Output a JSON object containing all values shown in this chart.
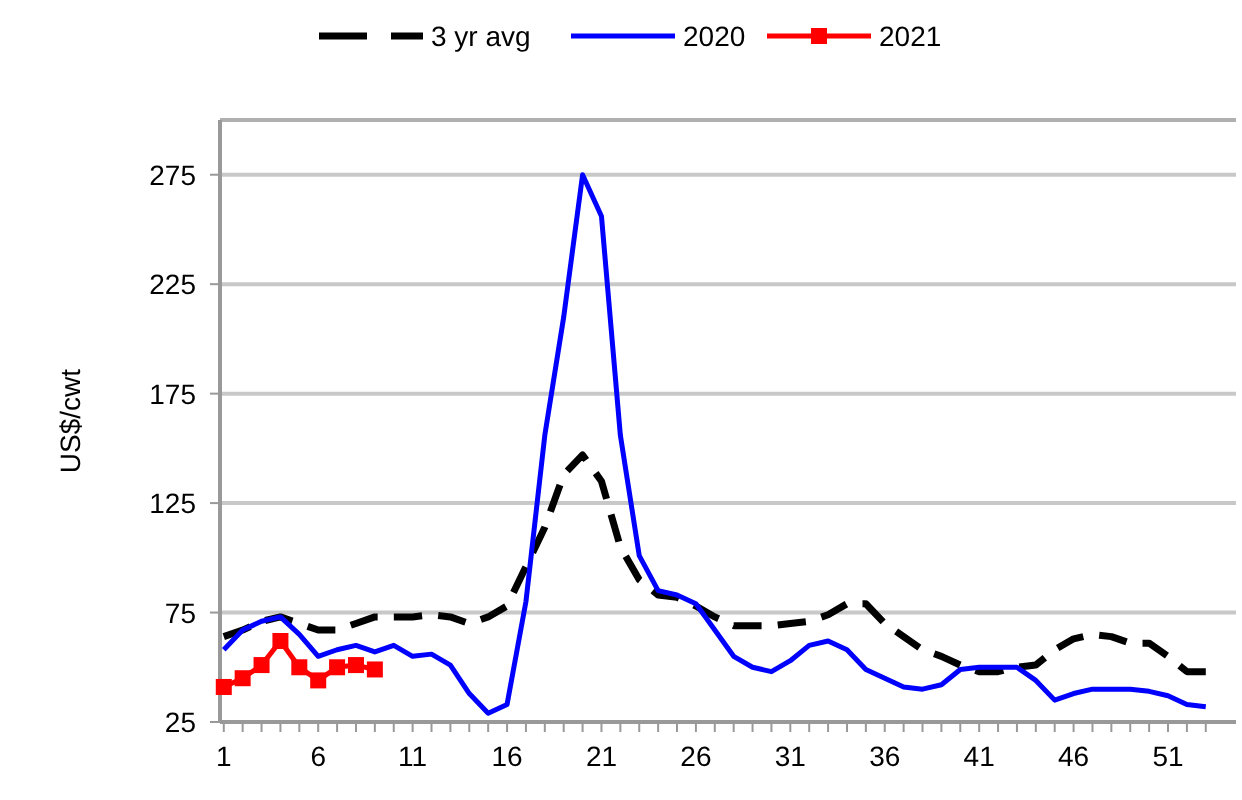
{
  "chart_data": {
    "type": "line",
    "ylabel": "US$/cwt",
    "x": [
      1,
      2,
      3,
      4,
      5,
      6,
      7,
      8,
      9,
      10,
      11,
      12,
      13,
      14,
      15,
      16,
      17,
      18,
      19,
      20,
      21,
      22,
      23,
      24,
      25,
      26,
      27,
      28,
      29,
      30,
      31,
      32,
      33,
      34,
      35,
      36,
      37,
      38,
      39,
      40,
      41,
      42,
      43,
      44,
      45,
      46,
      47,
      48,
      49,
      50,
      51,
      52,
      53
    ],
    "xlim": [
      0.8,
      54.6
    ],
    "xticks": [
      1,
      6,
      11,
      16,
      21,
      26,
      31,
      36,
      41,
      46,
      51
    ],
    "ylim": [
      25,
      300
    ],
    "yticks": [
      25,
      75,
      125,
      175,
      225,
      275
    ],
    "grid": "y",
    "legend": "top",
    "series": [
      {
        "name": "3 yr avg",
        "color": "#000000",
        "line_style": "dashed",
        "marker": "none",
        "values": [
          64,
          67,
          71,
          73,
          70,
          67,
          67,
          70,
          73,
          73,
          73,
          74,
          73,
          70,
          73,
          78,
          96,
          114,
          138,
          147,
          135,
          105,
          90,
          83,
          82,
          78,
          73,
          69,
          69,
          69,
          70,
          71,
          74,
          79,
          79,
          70,
          64,
          58,
          55,
          51,
          48,
          48,
          50,
          51,
          58,
          63,
          65,
          64,
          61,
          61,
          55,
          48,
          48
        ]
      },
      {
        "name": "2020",
        "color": "#0000ff",
        "line_style": "solid",
        "marker": "none",
        "values": [
          58,
          67,
          71,
          73,
          65,
          55,
          58,
          60,
          57,
          60,
          55,
          56,
          51,
          38,
          29,
          33,
          80,
          156,
          210,
          275,
          256,
          156,
          101,
          85,
          83,
          79,
          67,
          55,
          50,
          48,
          53,
          60,
          62,
          58,
          49,
          45,
          41,
          40,
          42,
          49,
          50,
          50,
          50,
          44,
          35,
          38,
          40,
          40,
          40,
          39,
          37,
          33,
          32
        ]
      },
      {
        "name": "2021",
        "color": "#ff0000",
        "line_style": "solid",
        "marker": "square",
        "x": [
          1,
          2,
          3,
          4,
          5,
          6,
          7,
          8,
          9
        ],
        "values": [
          41,
          45,
          51,
          62,
          50,
          44,
          50,
          51,
          49
        ]
      }
    ]
  }
}
